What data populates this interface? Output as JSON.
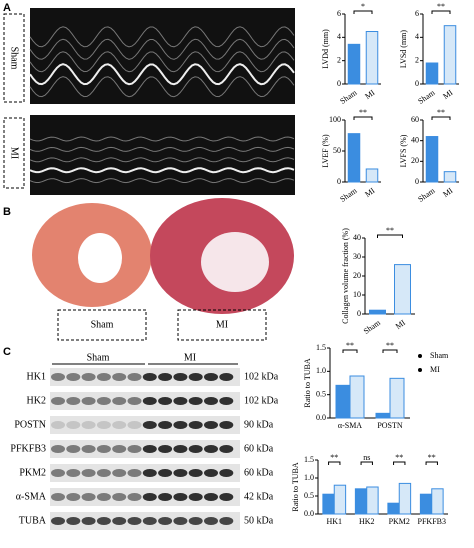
{
  "figure": {
    "panel_labels": [
      "A",
      "B",
      "C"
    ],
    "echo_labels": [
      "Sham",
      "MI"
    ],
    "histology_labels": [
      "Sham",
      "MI"
    ],
    "blot": {
      "group_labels": [
        "Sham",
        "MI"
      ],
      "proteins": [
        "HK1",
        "HK2",
        "POSTN",
        "PFKFB3",
        "PKM2",
        "α-SMA",
        "TUBA"
      ],
      "sizes": [
        "102 kDa",
        "102 kDa",
        "90 kDa",
        "60 kDa",
        "60 kDa",
        "42 kDa",
        "50 kDa"
      ]
    }
  },
  "chart_data": [
    {
      "type": "bar",
      "y_label": "LVDd (mm)",
      "categories": [
        "Sham",
        "MI"
      ],
      "values": [
        3.4,
        4.5
      ],
      "colors": [
        "#3b8de0",
        "#d6e8f8"
      ],
      "ylim": [
        0,
        6
      ],
      "yticks": [
        0,
        2,
        4,
        6
      ],
      "significance": "*"
    },
    {
      "type": "bar",
      "y_label": "LVSd (mm)",
      "categories": [
        "Sham",
        "MI"
      ],
      "values": [
        1.8,
        5.0
      ],
      "colors": [
        "#3b8de0",
        "#d6e8f8"
      ],
      "ylim": [
        0,
        6
      ],
      "yticks": [
        0,
        2,
        4,
        6
      ],
      "significance": "**"
    },
    {
      "type": "bar",
      "y_label": "LVEF (%)",
      "categories": [
        "Sham",
        "MI"
      ],
      "values": [
        78,
        21
      ],
      "colors": [
        "#3b8de0",
        "#d6e8f8"
      ],
      "ylim": [
        0,
        100
      ],
      "yticks": [
        0,
        50,
        100
      ],
      "significance": "**"
    },
    {
      "type": "bar",
      "y_label": "LVFS (%)",
      "categories": [
        "Sham",
        "MI"
      ],
      "values": [
        44,
        10
      ],
      "colors": [
        "#3b8de0",
        "#d6e8f8"
      ],
      "ylim": [
        0,
        60
      ],
      "yticks": [
        0,
        20,
        40,
        60
      ],
      "significance": "**"
    },
    {
      "type": "bar",
      "y_label": "Collagen volume fraction (%)",
      "categories": [
        "Sham",
        "MI"
      ],
      "values": [
        2,
        26
      ],
      "colors": [
        "#3b8de0",
        "#d6e8f8"
      ],
      "ylim": [
        0,
        40
      ],
      "yticks": [
        0,
        10,
        20,
        30,
        40
      ],
      "significance": "**"
    },
    {
      "type": "grouped_bar",
      "y_label": "Ratio to TUBA",
      "categories": [
        "α-SMA",
        "POSTN"
      ],
      "series": [
        {
          "name": "Sham",
          "color": "#3b8de0",
          "values": [
            0.7,
            0.1
          ]
        },
        {
          "name": "MI",
          "color": "#d6e8f8",
          "values": [
            0.9,
            0.85
          ]
        }
      ],
      "ylim": [
        0,
        1.5
      ],
      "yticks": [
        {
          "value": 0,
          "label": "0.0"
        },
        0.5,
        {
          "value": 1,
          "label": "1.0"
        },
        1.5
      ],
      "significance": [
        "**",
        "**"
      ],
      "legend": "right"
    },
    {
      "type": "grouped_bar",
      "y_label": "Ratio to TUBA",
      "categories": [
        "HK1",
        "HK2",
        "PKM2",
        "PFKFB3"
      ],
      "series": [
        {
          "name": "Sham",
          "color": "#3b8de0",
          "values": [
            0.55,
            0.7,
            0.3,
            0.55
          ]
        },
        {
          "name": "MI",
          "color": "#d6e8f8",
          "values": [
            0.8,
            0.75,
            0.85,
            0.7
          ]
        }
      ],
      "ylim": [
        0,
        1.5
      ],
      "yticks": [
        {
          "value": 0,
          "label": "0.0"
        },
        0.5,
        {
          "value": 1,
          "label": "1.0"
        },
        1.5
      ],
      "significance": [
        "**",
        "ns",
        "**",
        "**"
      ]
    }
  ]
}
